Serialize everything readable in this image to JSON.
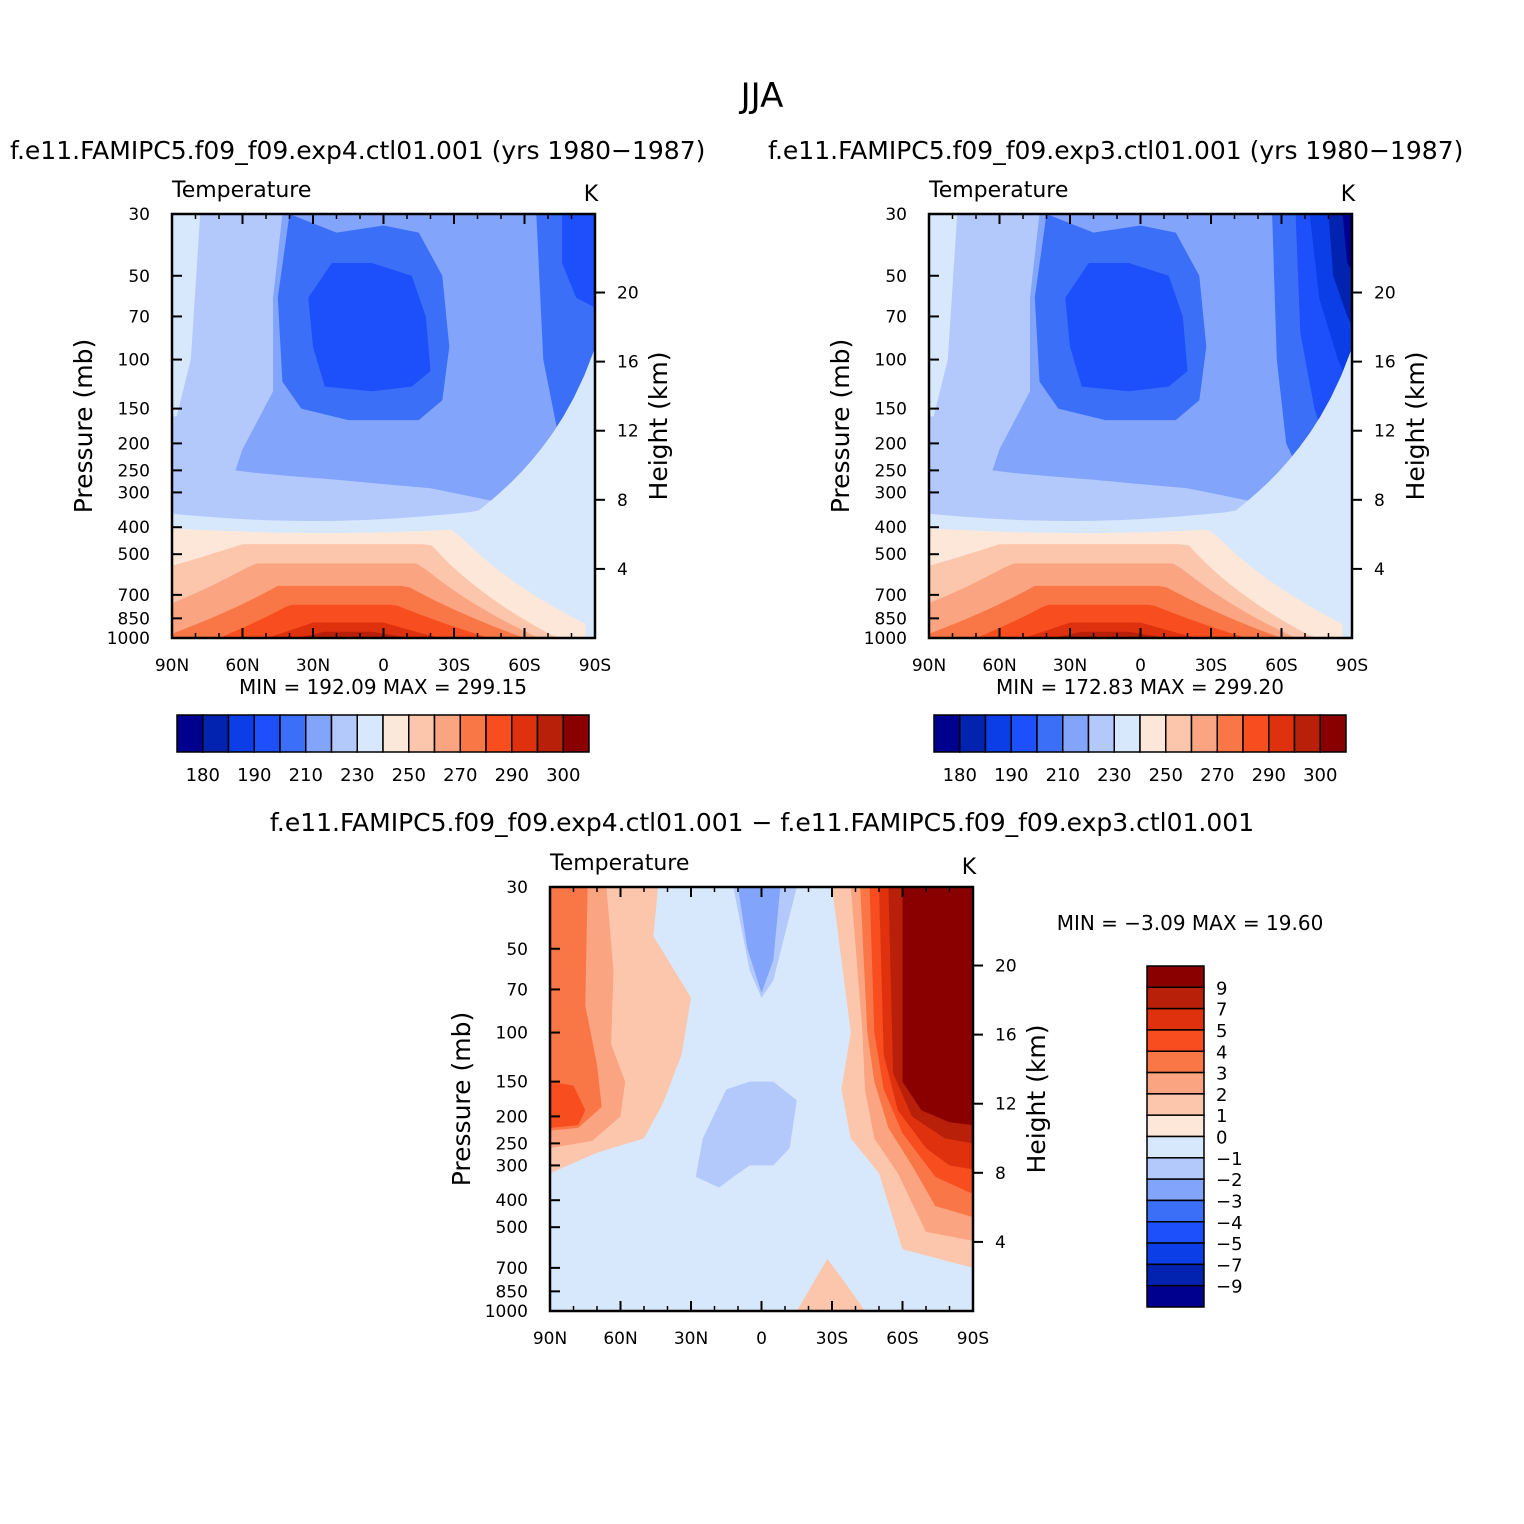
{
  "title": "JJA",
  "chart_data": [
    {
      "type": "heatmap",
      "title": "f.e11.FAMIPC5.f09_f09.exp4.ctl01.001 (yrs 1980−1987)",
      "variable": "Temperature",
      "units": "K",
      "ylabel": "Pressure (mb)",
      "ylabel_right": "Height (km)",
      "xticks": [
        "90N",
        "60N",
        "30N",
        "0",
        "30S",
        "60S",
        "90S"
      ],
      "xlim": [
        90,
        -90
      ],
      "yticks": [
        30,
        50,
        70,
        100,
        150,
        200,
        250,
        300,
        400,
        500,
        700,
        850,
        1000
      ],
      "ylim": [
        1000,
        30
      ],
      "y_scale": "log",
      "height_ticks": [
        4,
        8,
        12,
        16,
        20
      ],
      "stats": "MIN =  192.09   MAX =  299.15",
      "min": 192.09,
      "max": 299.15,
      "colorbar_labels": [
        "180",
        "190",
        "210",
        "230",
        "250",
        "270",
        "290",
        "300"
      ],
      "colors": [
        "#00008f",
        "#0222b0",
        "#0c3ee8",
        "#1d4ffb",
        "#3b6ff8",
        "#82a4fa",
        "#b3c9fc",
        "#d7e8fd",
        "#fde7d8",
        "#fcc6ad",
        "#fba481",
        "#f97747",
        "#f84d1e",
        "#e0310e",
        "#b8200a",
        "#8a0000"
      ]
    },
    {
      "type": "heatmap",
      "title": "f.e11.FAMIPC5.f09_f09.exp3.ctl01.001 (yrs 1980−1987)",
      "variable": "Temperature",
      "units": "K",
      "ylabel": "Pressure (mb)",
      "ylabel_right": "Height (km)",
      "xticks": [
        "90N",
        "60N",
        "30N",
        "0",
        "30S",
        "60S",
        "90S"
      ],
      "xlim": [
        90,
        -90
      ],
      "yticks": [
        30,
        50,
        70,
        100,
        150,
        200,
        250,
        300,
        400,
        500,
        700,
        850,
        1000
      ],
      "ylim": [
        1000,
        30
      ],
      "y_scale": "log",
      "height_ticks": [
        4,
        8,
        12,
        16,
        20
      ],
      "stats": "MIN =  172.83   MAX =  299.20",
      "min": 172.83,
      "max": 299.2,
      "colorbar_labels": [
        "180",
        "190",
        "210",
        "230",
        "250",
        "270",
        "290",
        "300"
      ],
      "colors": [
        "#00008f",
        "#0222b0",
        "#0c3ee8",
        "#1d4ffb",
        "#3b6ff8",
        "#82a4fa",
        "#b3c9fc",
        "#d7e8fd",
        "#fde7d8",
        "#fcc6ad",
        "#fba481",
        "#f97747",
        "#f84d1e",
        "#e0310e",
        "#b8200a",
        "#8a0000"
      ]
    },
    {
      "type": "heatmap",
      "title": "f.e11.FAMIPC5.f09_f09.exp4.ctl01.001 − f.e11.FAMIPC5.f09_f09.exp3.ctl01.001",
      "variable": "Temperature",
      "units": "K",
      "ylabel": "Pressure (mb)",
      "ylabel_right": "Height (km)",
      "xticks": [
        "90N",
        "60N",
        "30N",
        "0",
        "30S",
        "60S",
        "90S"
      ],
      "xlim": [
        90,
        -90
      ],
      "yticks": [
        30,
        50,
        70,
        100,
        150,
        200,
        250,
        300,
        400,
        500,
        700,
        850,
        1000
      ],
      "ylim": [
        1000,
        30
      ],
      "y_scale": "log",
      "height_ticks": [
        4,
        8,
        12,
        16,
        20
      ],
      "stats": "MIN =   −3.09   MAX =   19.60",
      "min": -3.09,
      "max": 19.6,
      "colorbar_labels": [
        "9",
        "7",
        "5",
        "4",
        "3",
        "2",
        "1",
        "0",
        "−1",
        "−2",
        "−3",
        "−4",
        "−5",
        "−7",
        "−9"
      ],
      "colors": [
        "#8a0000",
        "#b8200a",
        "#e0310e",
        "#f84d1e",
        "#f97747",
        "#fba481",
        "#fcc6ad",
        "#fde7d8",
        "#d7e8fd",
        "#b3c9fc",
        "#82a4fa",
        "#3b6ff8",
        "#1d4ffb",
        "#0c3ee8",
        "#0222b0",
        "#00008f"
      ]
    }
  ]
}
